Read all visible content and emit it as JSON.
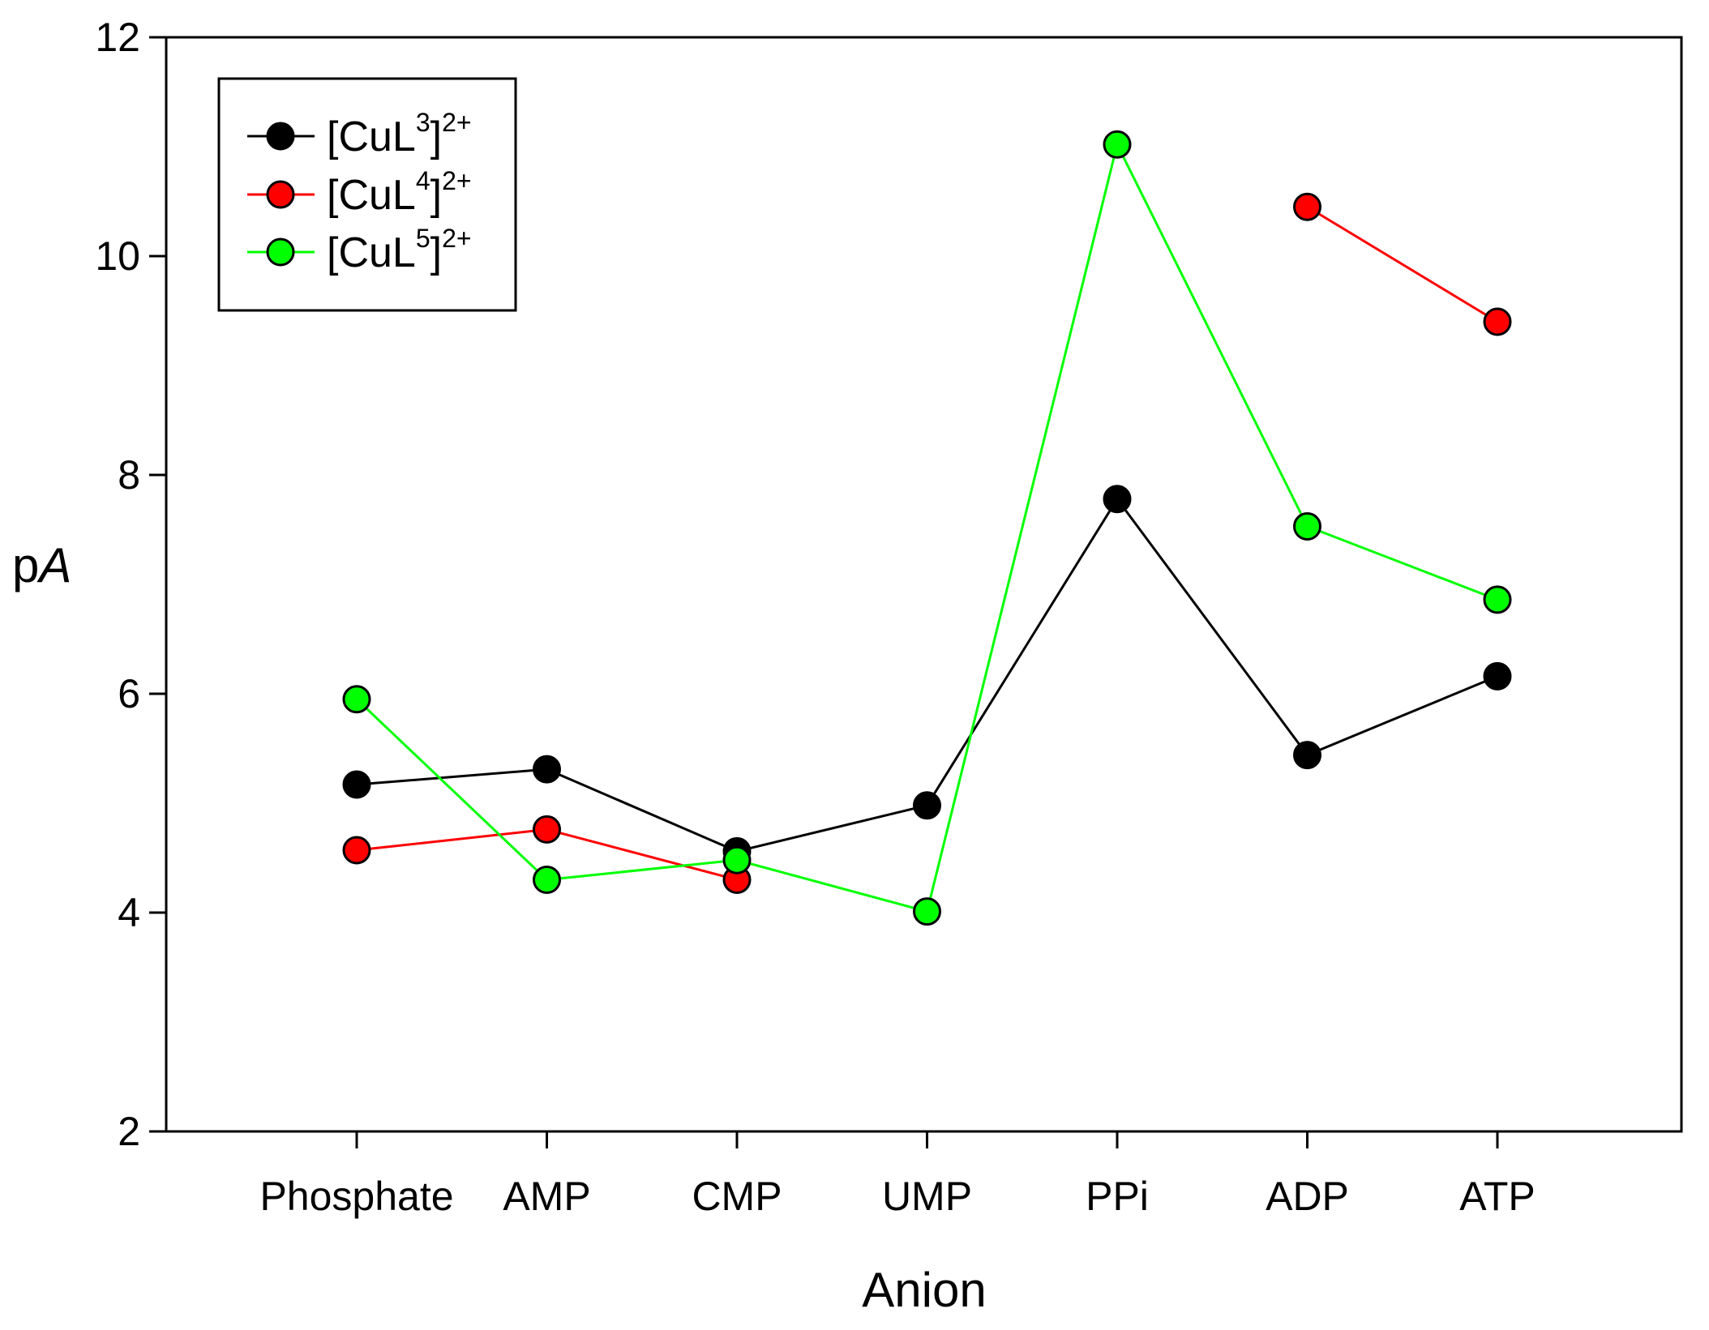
{
  "chart_data": {
    "type": "line",
    "title": "",
    "xlabel": "Anion",
    "ylabel_prefix": "p",
    "ylabel_italic": "A",
    "categories": [
      "Phosphate",
      "AMP",
      "CMP",
      "UMP",
      "PPi",
      "ADP",
      "ATP"
    ],
    "ylim": [
      2,
      12
    ],
    "yticks": [
      2,
      4,
      6,
      8,
      10,
      12
    ],
    "grid": false,
    "legend_position": "top-left",
    "series": [
      {
        "name_base": "[CuL",
        "name_sup1": "3",
        "name_close": "]",
        "name_sup2": "2+",
        "line_color": "#000000",
        "marker_color": "#000000",
        "values": [
          5.17,
          5.31,
          4.56,
          4.98,
          7.78,
          5.44,
          6.16
        ]
      },
      {
        "name_base": "[CuL",
        "name_sup1": "4",
        "name_close": "]",
        "name_sup2": "2+",
        "line_color": "#ff0000",
        "marker_color": "#ff0000",
        "values": [
          4.57,
          4.76,
          4.3,
          null,
          null,
          10.45,
          9.4
        ]
      },
      {
        "name_base": "[CuL",
        "name_sup1": "5",
        "name_close": "]",
        "name_sup2": "2+",
        "line_color": "#00ff00",
        "marker_color": "#00ff00",
        "values": [
          5.95,
          4.3,
          4.48,
          4.01,
          11.02,
          7.53,
          6.86
        ]
      }
    ]
  }
}
